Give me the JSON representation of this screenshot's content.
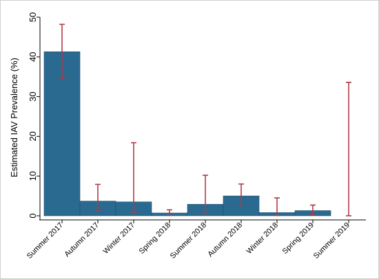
{
  "chart_data": {
    "type": "bar",
    "title": "",
    "xlabel": "",
    "ylabel": "Estimated IAV Prevalence (%)",
    "ylim": [
      0,
      50
    ],
    "yticks": [
      0,
      10,
      20,
      30,
      40,
      50
    ],
    "categories": [
      "Summer 2017",
      "Autumn 2017",
      "Winter 2017",
      "Spring 2018",
      "Summer 2018",
      "Autumn 2018",
      "Winter 2018",
      "Spring 2019",
      "Summer 2019"
    ],
    "values": [
      41.3,
      3.7,
      3.5,
      0.7,
      2.9,
      5.0,
      0.8,
      1.3,
      0.0
    ],
    "error_low": [
      34.6,
      1.2,
      0.9,
      0.1,
      0.6,
      2.6,
      0.1,
      0.3,
      0.0
    ],
    "error_high": [
      48.2,
      7.9,
      18.4,
      1.5,
      10.2,
      8.0,
      4.5,
      2.7,
      33.6
    ],
    "grid": false,
    "legend": "none",
    "colors": {
      "bar": "#2a6a90",
      "error_bar": "#b03a48"
    }
  }
}
